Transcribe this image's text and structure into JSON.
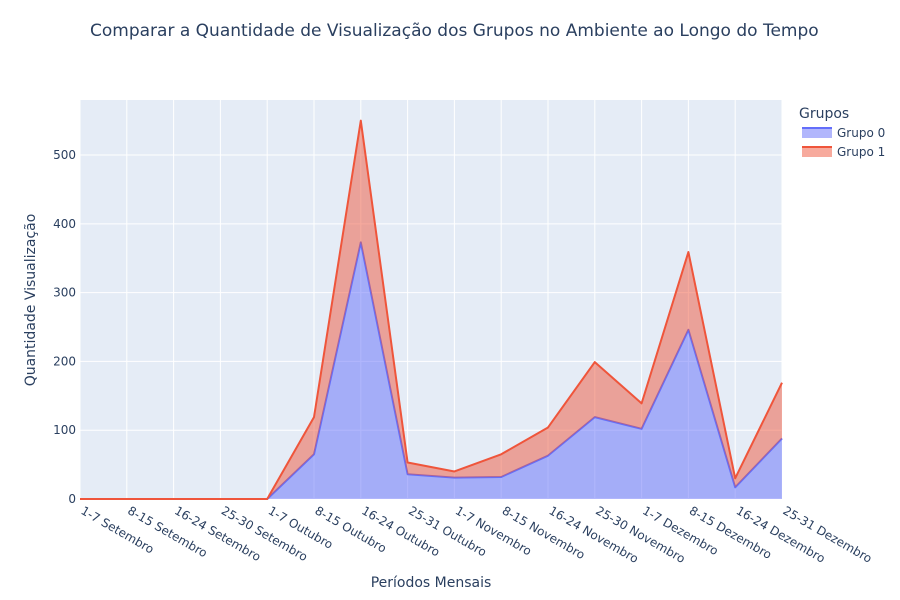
{
  "chart_data": {
    "type": "area",
    "stacked": true,
    "title": "Comparar a Quantidade de Visualização dos Grupos no Ambiente ao Longo do Tempo",
    "xlabel": "Períodos Mensais",
    "ylabel": "Quantidade Visualização",
    "ylim": [
      0,
      580
    ],
    "yticks": [
      0,
      100,
      200,
      300,
      400,
      500
    ],
    "grid": true,
    "legend_title": "Grupos",
    "legend_position": "top-right",
    "categories": [
      "1-7 Setembro",
      "8-15 Setembro",
      "16-24 Setembro",
      "25-30 Setembro",
      "1-7 Outubro",
      "8-15 Outubro",
      "16-24 Outubro",
      "25-31 Outubro",
      "1-7 Novembro",
      "8-15 Novembro",
      "16-24 Novembro",
      "25-30 Novembro",
      "1-7 Dezembro",
      "8-15 Dezembro",
      "16-24 Dezembro",
      "25-31 Dezembro"
    ],
    "series": [
      {
        "name": "Grupo 0",
        "color": "#636efa",
        "fill": "rgba(99,110,250,0.5)",
        "values": [
          0,
          0,
          0,
          0,
          0,
          65,
          373,
          36,
          31,
          32,
          63,
          119,
          102,
          246,
          17,
          88
        ]
      },
      {
        "name": "Grupo 1",
        "color": "#EF553B",
        "fill": "rgba(239,85,59,0.5)",
        "values": [
          0,
          0,
          0,
          0,
          0,
          54,
          177,
          17,
          9,
          33,
          41,
          80,
          37,
          113,
          13,
          81
        ]
      }
    ]
  },
  "colors": {
    "plot_background": "#e5ecf6",
    "grid": "#ffffff",
    "text": "#2a3f5f"
  }
}
